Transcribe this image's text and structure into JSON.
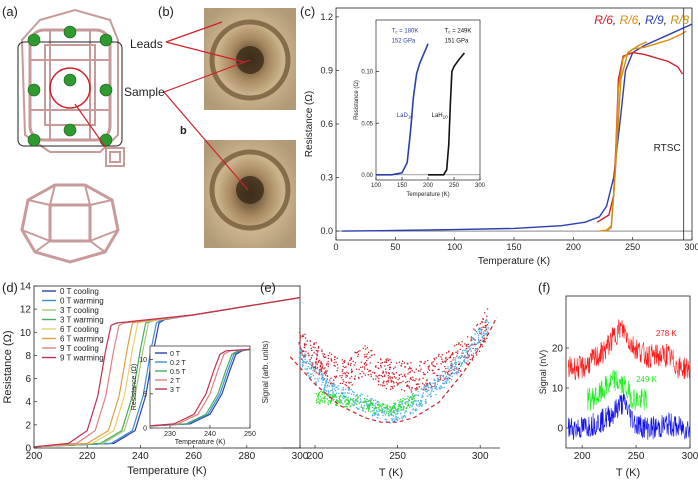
{
  "panels": {
    "a": {
      "label": "(a)"
    },
    "b": {
      "label": "(b)",
      "leads_label": "Leads",
      "sample_label": "Sample",
      "sub_label": "b"
    },
    "c": {
      "label": "(c)"
    },
    "d": {
      "label": "(d)"
    },
    "e": {
      "label": "(e)"
    },
    "f": {
      "label": "(f)"
    }
  },
  "colors": {
    "lattice": "#c99a9a",
    "atom": "#2f9a2f",
    "red": "#d0202a",
    "orange": "#e08a10",
    "blue": "#2a3fb0",
    "gold": "#c89010",
    "green": "#2ee02e",
    "cyan": "#4ab0e8"
  },
  "chart_data": [
    {
      "id": "c",
      "type": "line",
      "xlabel": "Temperature (K)",
      "ylabel": "Resistance (Ω)",
      "xlim": [
        0,
        300
      ],
      "ylim": [
        -0.05,
        1.25
      ],
      "xticks": [
        "0",
        "50",
        "100",
        "150",
        "200",
        "250",
        "300"
      ],
      "yticks": [
        "0.0",
        "0.3",
        "0.6",
        "0.9",
        "1.2"
      ],
      "ytick_values": [
        0.0,
        0.3,
        0.6,
        0.9,
        1.2
      ],
      "annotation": "RTSC",
      "annotation_x": 293,
      "legend": [
        {
          "text": "R/6",
          "color": "#d0202a",
          "sep": ", "
        },
        {
          "text": "R/6",
          "color": "#e08a10",
          "sep": ", "
        },
        {
          "text": "R/9",
          "color": "#2a3fb0",
          "sep": ", "
        },
        {
          "text": "R/8",
          "color": "#c89010",
          "sep": ""
        }
      ],
      "series": [
        {
          "name": "blue",
          "color": "#2a3fb0",
          "x": [
            5,
            50,
            100,
            150,
            190,
            210,
            222,
            228,
            234,
            240,
            244,
            250,
            260,
            270,
            280,
            300
          ],
          "y": [
            0.0,
            0.003,
            0.008,
            0.015,
            0.03,
            0.05,
            0.08,
            0.14,
            0.3,
            0.65,
            0.9,
            1.0,
            1.04,
            1.07,
            1.1,
            1.16
          ]
        },
        {
          "name": "red",
          "color": "#d0202a",
          "x": [
            220,
            230,
            234,
            236,
            238,
            242,
            250,
            260,
            270,
            280,
            288,
            292
          ],
          "y": [
            0.05,
            0.09,
            0.2,
            0.5,
            0.85,
            0.98,
            1.0,
            0.99,
            0.97,
            0.95,
            0.92,
            0.88
          ]
        },
        {
          "name": "orange",
          "color": "#e08a10",
          "x": [
            222,
            228,
            232,
            235,
            238,
            242,
            250,
            260,
            270,
            280,
            290,
            295
          ],
          "y": [
            0.0,
            0.005,
            0.03,
            0.3,
            0.8,
            0.97,
            1.02,
            1.03,
            1.05,
            1.07,
            1.1,
            1.12
          ]
        },
        {
          "name": "gold",
          "color": "#c89010",
          "x": [
            228,
            232,
            236,
            240,
            246,
            255,
            262
          ],
          "y": [
            0.0,
            0.02,
            0.4,
            0.85,
            1.0,
            1.04,
            1.06
          ]
        }
      ],
      "inset": {
        "ylabel": "Resistance (Ω)",
        "xlabel": "Temperature (K)",
        "xlim": [
          100,
          300
        ],
        "ylim": [
          -0.005,
          0.15
        ],
        "xticks": [
          "100",
          "150",
          "200",
          "250",
          "300"
        ],
        "yticks": [
          "0.00",
          "0.05",
          "0.10"
        ],
        "ytick_values": [
          0.0,
          0.05,
          0.1
        ],
        "ann_left_tc": "T",
        "ann_left_tc_val": " = 180K",
        "ann_left_p": "152 GPa",
        "ann_left_name": "LaD",
        "ann_left_sub": "10",
        "ann_right_tc": "T",
        "ann_right_tc_val": " = 249K",
        "ann_right_p": "151 GPa",
        "ann_right_name": "LaH",
        "ann_right_sub": "10",
        "series": [
          {
            "name": "LaD10",
            "color": "#2a3fb0",
            "x": [
              100,
              130,
              150,
              160,
              166,
              172,
              178,
              184,
              190,
              196,
              200
            ],
            "y": [
              0.0,
              0.0,
              0.002,
              0.012,
              0.04,
              0.075,
              0.098,
              0.108,
              0.115,
              0.122,
              0.127
            ]
          },
          {
            "name": "LaH10",
            "color": "#111111",
            "x": [
              200,
              230,
              236,
              240,
              243,
              246,
              250,
              260,
              270
            ],
            "y": [
              0.0,
              0.0,
              0.005,
              0.03,
              0.07,
              0.1,
              0.105,
              0.112,
              0.118
            ]
          }
        ]
      }
    },
    {
      "id": "d",
      "type": "line",
      "xlabel": "Temperature (K)",
      "ylabel": "Resistance (Ω)",
      "xlim": [
        200,
        300
      ],
      "ylim": [
        0,
        14
      ],
      "xticks": [
        "200",
        "220",
        "240",
        "260",
        "280",
        "300"
      ],
      "yticks": [
        "0",
        "2",
        "4",
        "6",
        "8",
        "10",
        "12",
        "14"
      ],
      "ytick_values": [
        0,
        2,
        4,
        6,
        8,
        10,
        12,
        14
      ],
      "legend": [
        {
          "text": "0 T cooling",
          "color": "#2a3fb0"
        },
        {
          "text": "0 T warming",
          "color": "#3a8ed0"
        },
        {
          "text": "3 T cooling",
          "color": "#a8c878"
        },
        {
          "text": "3 T warming",
          "color": "#4aaa60"
        },
        {
          "text": "6 T cooling",
          "color": "#e8d070"
        },
        {
          "text": "6 T warming",
          "color": "#e0a040"
        },
        {
          "text": "9 T cooling",
          "color": "#e08080"
        },
        {
          "text": "9 T warming",
          "color": "#c03050"
        }
      ],
      "series": [
        {
          "name": "0 T cooling",
          "color": "#2a3fb0",
          "x": [
            200,
            230,
            238,
            242,
            245,
            247,
            249,
            260,
            300
          ],
          "y": [
            0.1,
            0.4,
            1.5,
            4.5,
            8.5,
            10.8,
            11.1,
            11.5,
            13.0
          ]
        },
        {
          "name": "0 T warming",
          "color": "#3a8ed0",
          "x": [
            200,
            229,
            237,
            241,
            244,
            246,
            248,
            260,
            300
          ],
          "y": [
            0.1,
            0.4,
            1.5,
            4.5,
            8.5,
            10.8,
            11.1,
            11.5,
            13.0
          ]
        },
        {
          "name": "3 T cooling",
          "color": "#a8c878",
          "x": [
            200,
            226,
            234,
            238,
            241,
            243,
            245,
            260,
            300
          ],
          "y": [
            0.1,
            0.4,
            1.5,
            4.5,
            8.5,
            10.8,
            11.0,
            11.5,
            13.0
          ]
        },
        {
          "name": "3 T warming",
          "color": "#4aaa60",
          "x": [
            200,
            225,
            233,
            237,
            240,
            242,
            244,
            260,
            300
          ],
          "y": [
            0.1,
            0.4,
            1.5,
            4.5,
            8.5,
            10.8,
            11.0,
            11.5,
            13.0
          ]
        },
        {
          "name": "6 T cooling",
          "color": "#e8d070",
          "x": [
            200,
            222,
            230,
            234,
            237,
            239,
            241,
            260,
            300
          ],
          "y": [
            0.1,
            0.4,
            1.5,
            4.5,
            8.5,
            10.8,
            10.9,
            11.5,
            13.0
          ]
        },
        {
          "name": "6 T warming",
          "color": "#e0a040",
          "x": [
            200,
            220,
            228,
            232,
            235,
            237,
            239,
            260,
            300
          ],
          "y": [
            0.1,
            0.4,
            1.5,
            4.5,
            8.5,
            10.8,
            10.9,
            11.5,
            13.0
          ]
        },
        {
          "name": "9 T cooling",
          "color": "#e08080",
          "x": [
            200,
            216,
            223,
            227,
            230,
            232,
            234,
            260,
            300
          ],
          "y": [
            0.1,
            0.4,
            1.5,
            4.5,
            8.5,
            10.6,
            10.8,
            11.5,
            13.0
          ]
        },
        {
          "name": "9 T warming",
          "color": "#c03050",
          "x": [
            200,
            213,
            220,
            224,
            227,
            229,
            231,
            260,
            300
          ],
          "y": [
            0.1,
            0.4,
            1.5,
            4.5,
            8.5,
            10.6,
            10.8,
            11.5,
            13.0
          ]
        }
      ],
      "inset": {
        "xlabel": "Temperature (K)",
        "ylabel": "Resistance (Ω)",
        "xlim": [
          225,
          250
        ],
        "ylim": [
          0,
          12
        ],
        "xticks": [
          "230",
          "240",
          "250"
        ],
        "yticks": [
          "0",
          "5",
          "10"
        ],
        "ytick_values": [
          0,
          5,
          10
        ],
        "legend": [
          {
            "text": "0 T",
            "color": "#2a3fb0"
          },
          {
            "text": "0.2 T",
            "color": "#3a8ed0"
          },
          {
            "text": "0.5 T",
            "color": "#4aaa60"
          },
          {
            "text": "2 T",
            "color": "#e08080"
          },
          {
            "text": "3 T",
            "color": "#c03050"
          }
        ],
        "series": [
          {
            "name": "0 T",
            "color": "#2a3fb0",
            "x": [
              225,
              235,
              240,
              243,
              245,
              246.5,
              248,
              250
            ],
            "y": [
              0.3,
              0.6,
              2.0,
              5.0,
              8.5,
              10.8,
              11.3,
              11.5
            ]
          },
          {
            "name": "0.2 T",
            "color": "#3a8ed0",
            "x": [
              225,
              234.5,
              239.5,
              242.5,
              244.5,
              246,
              247.5,
              250
            ],
            "y": [
              0.3,
              0.6,
              2.0,
              5.0,
              8.5,
              10.8,
              11.3,
              11.5
            ]
          },
          {
            "name": "0.5 T",
            "color": "#4aaa60",
            "x": [
              225,
              234,
              239,
              242,
              244,
              245.5,
              247,
              250
            ],
            "y": [
              0.3,
              0.6,
              2.0,
              5.0,
              8.5,
              10.8,
              11.3,
              11.5
            ]
          },
          {
            "name": "2 T",
            "color": "#e08080",
            "x": [
              225,
              232,
              237,
              240,
              242,
              243.5,
              245,
              250
            ],
            "y": [
              0.3,
              0.6,
              2.0,
              5.0,
              8.5,
              10.8,
              11.3,
              11.5
            ]
          },
          {
            "name": "3 T",
            "color": "#c03050",
            "x": [
              225,
              231,
              236,
              239,
              241,
              242.5,
              244,
              250
            ],
            "y": [
              0.3,
              0.6,
              2.0,
              5.0,
              8.5,
              10.8,
              11.3,
              11.5
            ]
          }
        ]
      }
    },
    {
      "id": "e",
      "type": "scatter",
      "xlabel": "T (K)",
      "ylabel": "Signal (arb. units)",
      "xlim": [
        180,
        312
      ],
      "ylim": [
        0,
        1
      ],
      "xticks": [
        "200",
        "250",
        "300"
      ],
      "tick_values": [
        200,
        250,
        300
      ],
      "series": [
        {
          "name": "red",
          "color": "#d0202a",
          "x": [
            190,
            200,
            210,
            220,
            225,
            230,
            235,
            240,
            250,
            260,
            270,
            280,
            290,
            300,
            305
          ],
          "y": [
            0.7,
            0.6,
            0.52,
            0.48,
            0.55,
            0.58,
            0.55,
            0.5,
            0.48,
            0.47,
            0.5,
            0.55,
            0.62,
            0.75,
            0.85
          ]
        },
        {
          "name": "cyan",
          "color": "#4ab0e8",
          "x": [
            190,
            200,
            210,
            220,
            230,
            240,
            245,
            250,
            260,
            270,
            280,
            290,
            300,
            305
          ],
          "y": [
            0.62,
            0.48,
            0.38,
            0.34,
            0.3,
            0.24,
            0.22,
            0.24,
            0.3,
            0.38,
            0.48,
            0.6,
            0.75,
            0.83
          ]
        },
        {
          "name": "green",
          "color": "#2ee02e",
          "x": [
            200,
            205,
            210,
            215,
            220,
            225,
            230,
            235,
            240,
            245,
            250,
            255,
            260
          ],
          "y": [
            0.33,
            0.34,
            0.32,
            0.32,
            0.3,
            0.32,
            0.29,
            0.27,
            0.27,
            0.26,
            0.28,
            0.3,
            0.33
          ]
        }
      ],
      "fit": {
        "color": "#d0202a",
        "x": [
          185,
          200,
          215,
          230,
          240,
          250,
          260,
          275,
          290,
          305,
          310
        ],
        "y": [
          0.6,
          0.42,
          0.28,
          0.2,
          0.17,
          0.17,
          0.2,
          0.3,
          0.5,
          0.75,
          0.86
        ]
      }
    },
    {
      "id": "f",
      "type": "line",
      "xlabel": "T (K)",
      "ylabel": "Signal (nV)",
      "xlim": [
        185,
        300
      ],
      "ylim": [
        -5,
        33
      ],
      "xticks": [
        "200",
        "250",
        "300"
      ],
      "tick_values": [
        200,
        250,
        300
      ],
      "yticks": [
        "0",
        "10",
        "20"
      ],
      "ytick_values": [
        0,
        10,
        20
      ],
      "label_red": "278 K",
      "label_green": "249 K",
      "series": [
        {
          "name": "red",
          "color": "#ff1a1a",
          "x": [
            187,
            200,
            210,
            220,
            230,
            235,
            240,
            245,
            250,
            260,
            270,
            280,
            290,
            300
          ],
          "y": [
            15,
            15,
            17,
            19,
            23,
            25,
            24,
            21,
            20,
            18,
            18,
            18,
            15,
            15
          ]
        },
        {
          "name": "green",
          "color": "#22ee22",
          "x": [
            205,
            215,
            225,
            230,
            235,
            240,
            245,
            250,
            255,
            260
          ],
          "y": [
            7,
            8,
            11,
            12,
            11,
            10,
            8,
            7,
            7,
            7
          ]
        },
        {
          "name": "blue",
          "color": "#1010ee",
          "x": [
            187,
            200,
            210,
            220,
            230,
            235,
            240,
            245,
            250,
            260,
            270,
            280,
            290,
            300
          ],
          "y": [
            0,
            0,
            1,
            2,
            4,
            6,
            6,
            3,
            1,
            0,
            0,
            1,
            0,
            0
          ]
        }
      ]
    }
  ]
}
